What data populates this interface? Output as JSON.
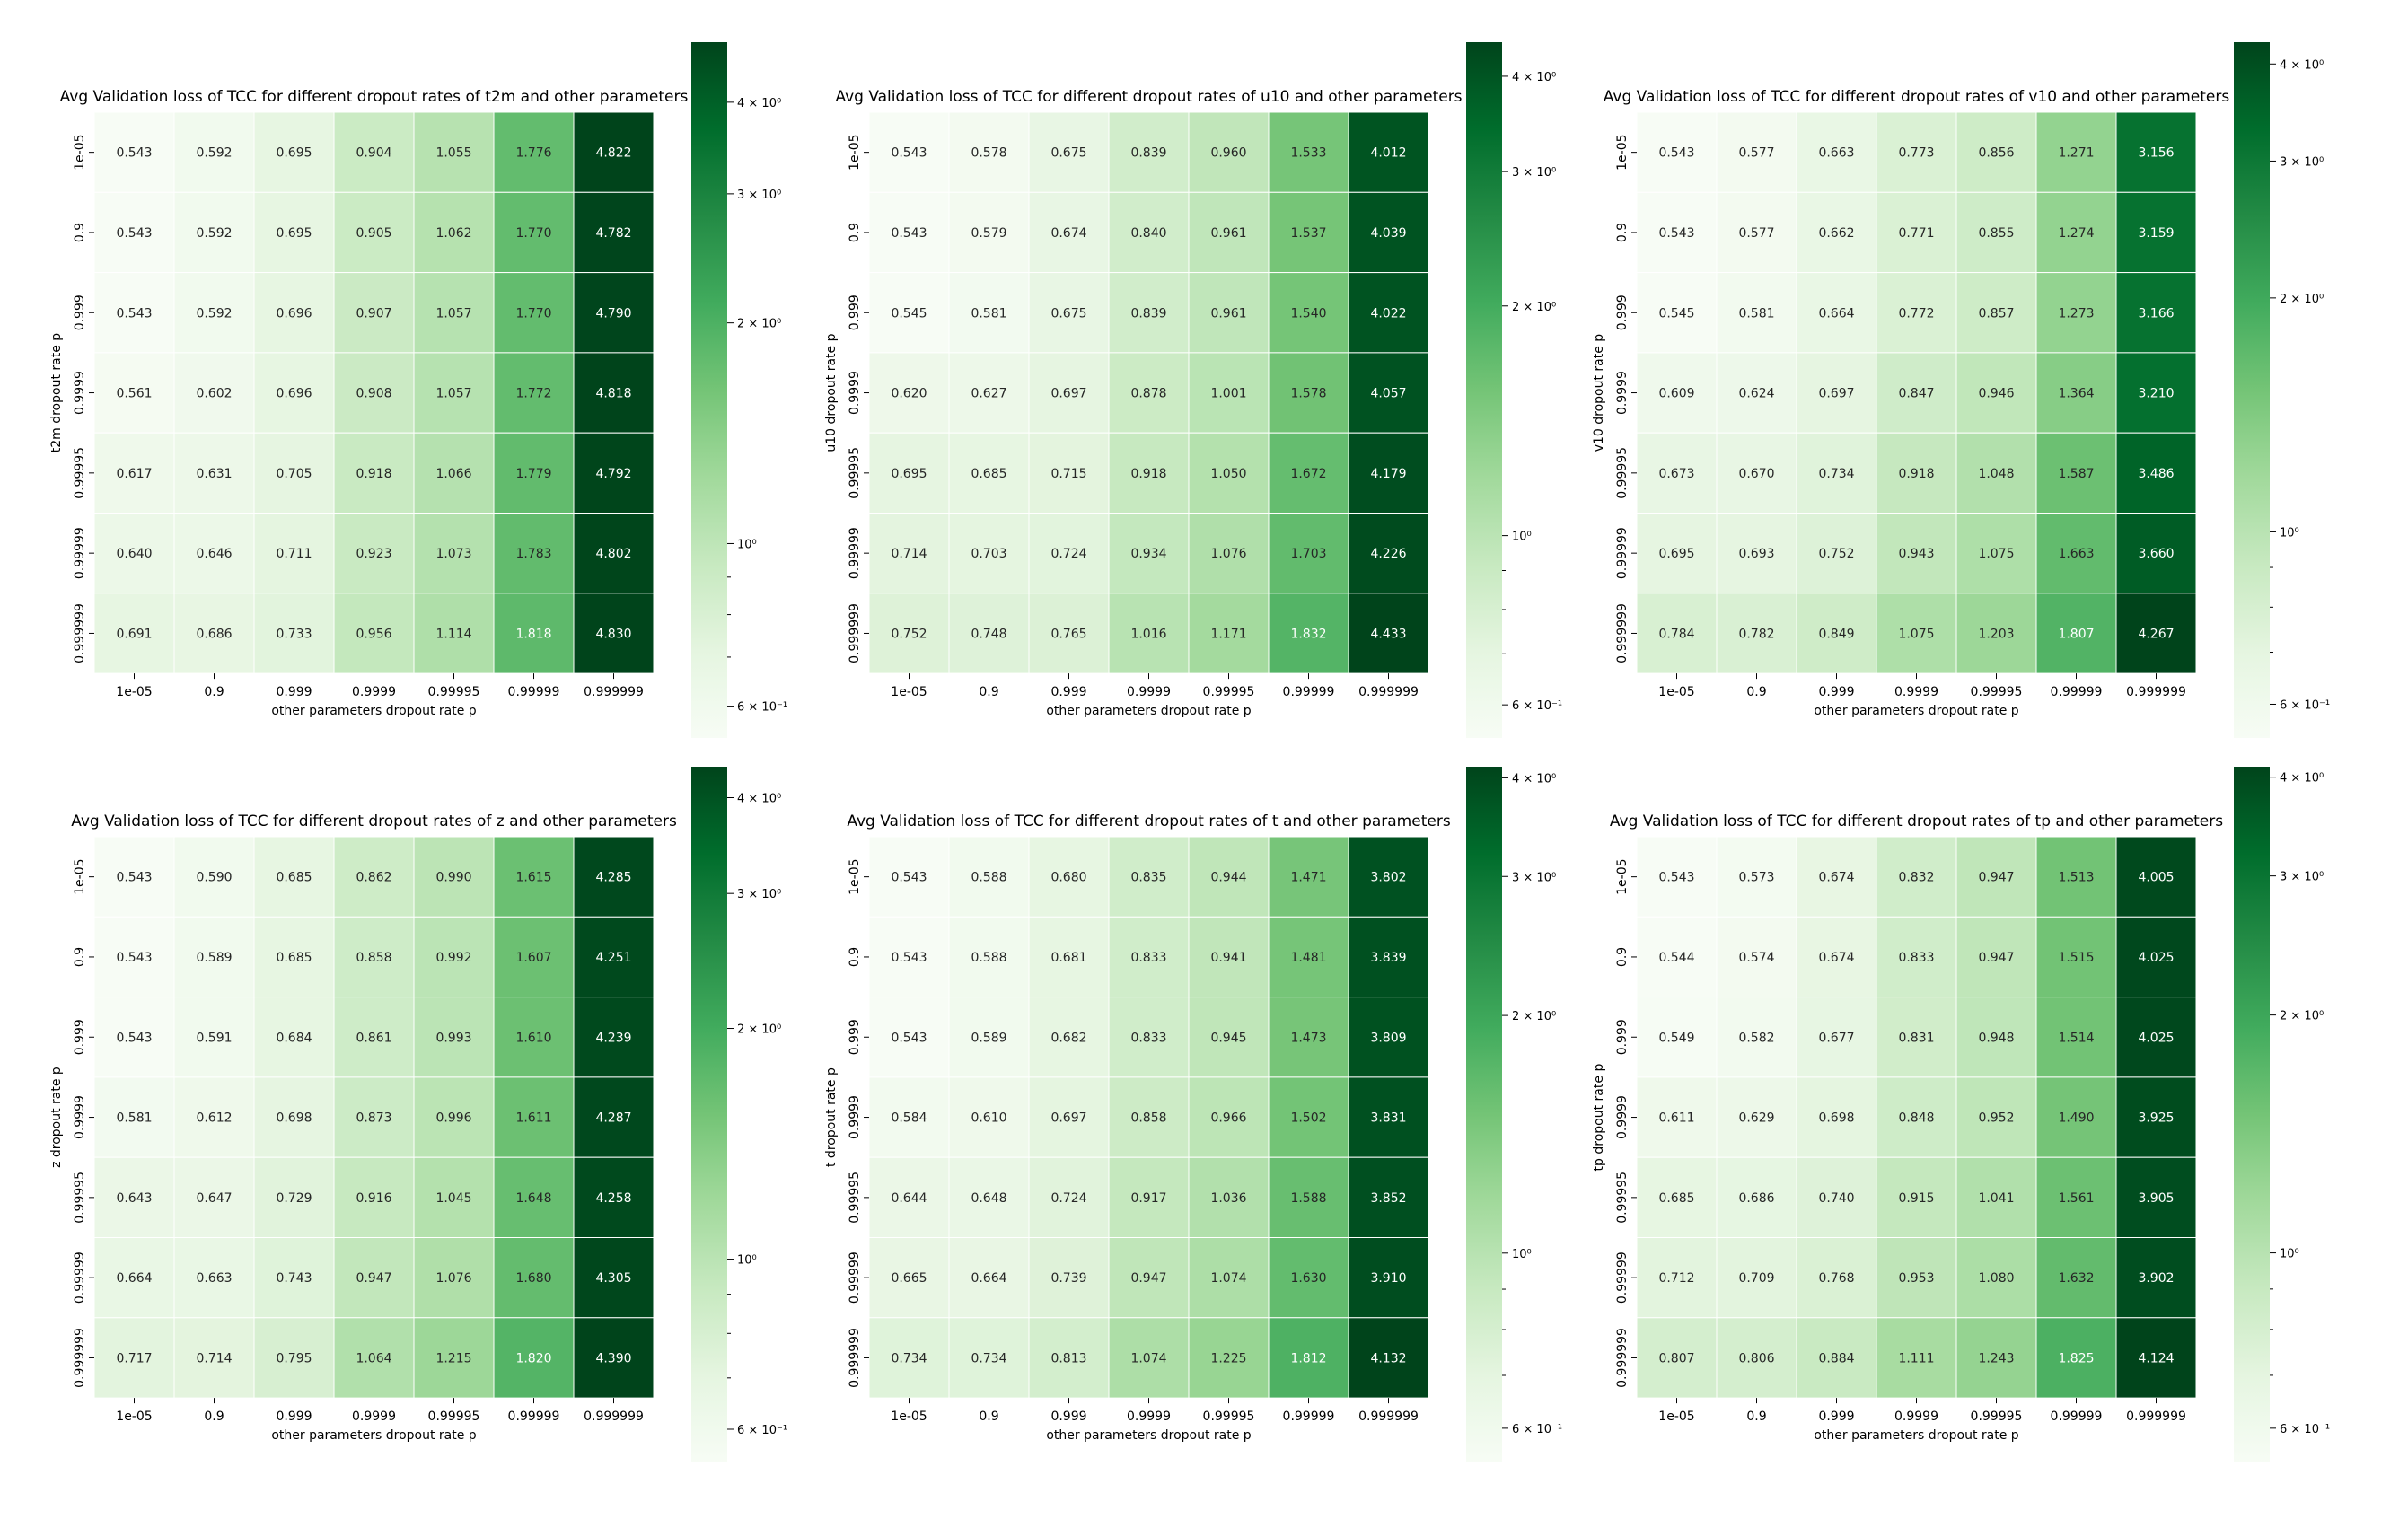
{
  "chart_data": [
    {
      "type": "heatmap",
      "title": "Avg Validation loss of TCC for different dropout rates of t2m and other parameters",
      "xlabel": "other parameters dropout rate p",
      "ylabel": "t2m dropout rate p",
      "x": [
        "1e-05",
        "0.9",
        "0.999",
        "0.9999",
        "0.99995",
        "0.99999",
        "0.999999"
      ],
      "y": [
        "1e-05",
        "0.9",
        "0.999",
        "0.9999",
        "0.99995",
        "0.99999",
        "0.999999"
      ],
      "values": [
        [
          "0.543",
          "0.592",
          "0.695",
          "0.904",
          "1.055",
          "1.776",
          "4.822"
        ],
        [
          "0.543",
          "0.592",
          "0.695",
          "0.905",
          "1.062",
          "1.770",
          "4.782"
        ],
        [
          "0.543",
          "0.592",
          "0.696",
          "0.907",
          "1.057",
          "1.770",
          "4.790"
        ],
        [
          "0.561",
          "0.602",
          "0.696",
          "0.908",
          "1.057",
          "1.772",
          "4.818"
        ],
        [
          "0.617",
          "0.631",
          "0.705",
          "0.918",
          "1.066",
          "1.779",
          "4.792"
        ],
        [
          "0.640",
          "0.646",
          "0.711",
          "0.923",
          "1.073",
          "1.783",
          "4.802"
        ],
        [
          "0.691",
          "0.686",
          "0.733",
          "0.956",
          "1.114",
          "1.818",
          "4.830"
        ]
      ],
      "colorbar": {
        "scale": "log",
        "range": [
          0.543,
          4.83
        ],
        "ticks": [
          "6 × 10⁻¹",
          "10⁰",
          "2 × 10⁰",
          "3 × 10⁰",
          "4 × 10⁰"
        ]
      }
    },
    {
      "type": "heatmap",
      "title": "Avg Validation loss of TCC for different dropout rates of u10 and other parameters",
      "xlabel": "other parameters dropout rate p",
      "ylabel": "u10 dropout rate p",
      "x": [
        "1e-05",
        "0.9",
        "0.999",
        "0.9999",
        "0.99995",
        "0.99999",
        "0.999999"
      ],
      "y": [
        "1e-05",
        "0.9",
        "0.999",
        "0.9999",
        "0.99995",
        "0.99999",
        "0.999999"
      ],
      "values": [
        [
          "0.543",
          "0.578",
          "0.675",
          "0.839",
          "0.960",
          "1.533",
          "4.012"
        ],
        [
          "0.543",
          "0.579",
          "0.674",
          "0.840",
          "0.961",
          "1.537",
          "4.039"
        ],
        [
          "0.545",
          "0.581",
          "0.675",
          "0.839",
          "0.961",
          "1.540",
          "4.022"
        ],
        [
          "0.620",
          "0.627",
          "0.697",
          "0.878",
          "1.001",
          "1.578",
          "4.057"
        ],
        [
          "0.695",
          "0.685",
          "0.715",
          "0.918",
          "1.050",
          "1.672",
          "4.179"
        ],
        [
          "0.714",
          "0.703",
          "0.724",
          "0.934",
          "1.076",
          "1.703",
          "4.226"
        ],
        [
          "0.752",
          "0.748",
          "0.765",
          "1.016",
          "1.171",
          "1.832",
          "4.433"
        ]
      ],
      "colorbar": {
        "scale": "log",
        "range": [
          0.543,
          4.433
        ],
        "ticks": [
          "6 × 10⁻¹",
          "10⁰",
          "2 × 10⁰",
          "3 × 10⁰",
          "4 × 10⁰"
        ]
      }
    },
    {
      "type": "heatmap",
      "title": "Avg Validation loss of TCC for different dropout rates of v10 and other parameters",
      "xlabel": "other parameters dropout rate p",
      "ylabel": "v10 dropout rate p",
      "x": [
        "1e-05",
        "0.9",
        "0.999",
        "0.9999",
        "0.99995",
        "0.99999",
        "0.999999"
      ],
      "y": [
        "1e-05",
        "0.9",
        "0.999",
        "0.9999",
        "0.99995",
        "0.99999",
        "0.999999"
      ],
      "values": [
        [
          "0.543",
          "0.577",
          "0.663",
          "0.773",
          "0.856",
          "1.271",
          "3.156"
        ],
        [
          "0.543",
          "0.577",
          "0.662",
          "0.771",
          "0.855",
          "1.274",
          "3.159"
        ],
        [
          "0.545",
          "0.581",
          "0.664",
          "0.772",
          "0.857",
          "1.273",
          "3.166"
        ],
        [
          "0.609",
          "0.624",
          "0.697",
          "0.847",
          "0.946",
          "1.364",
          "3.210"
        ],
        [
          "0.673",
          "0.670",
          "0.734",
          "0.918",
          "1.048",
          "1.587",
          "3.486"
        ],
        [
          "0.695",
          "0.693",
          "0.752",
          "0.943",
          "1.075",
          "1.663",
          "3.660"
        ],
        [
          "0.784",
          "0.782",
          "0.849",
          "1.075",
          "1.203",
          "1.807",
          "4.267"
        ]
      ],
      "colorbar": {
        "scale": "log",
        "range": [
          0.543,
          4.267
        ],
        "ticks": [
          "6 × 10⁻¹",
          "10⁰",
          "2 × 10⁰",
          "3 × 10⁰",
          "4 × 10⁰"
        ]
      }
    },
    {
      "type": "heatmap",
      "title": "Avg Validation loss of TCC for different dropout rates of z and other parameters",
      "xlabel": "other parameters dropout rate p",
      "ylabel": "z dropout rate p",
      "x": [
        "1e-05",
        "0.9",
        "0.999",
        "0.9999",
        "0.99995",
        "0.99999",
        "0.999999"
      ],
      "y": [
        "1e-05",
        "0.9",
        "0.999",
        "0.9999",
        "0.99995",
        "0.99999",
        "0.999999"
      ],
      "values": [
        [
          "0.543",
          "0.590",
          "0.685",
          "0.862",
          "0.990",
          "1.615",
          "4.285"
        ],
        [
          "0.543",
          "0.589",
          "0.685",
          "0.858",
          "0.992",
          "1.607",
          "4.251"
        ],
        [
          "0.543",
          "0.591",
          "0.684",
          "0.861",
          "0.993",
          "1.610",
          "4.239"
        ],
        [
          "0.581",
          "0.612",
          "0.698",
          "0.873",
          "0.996",
          "1.611",
          "4.287"
        ],
        [
          "0.643",
          "0.647",
          "0.729",
          "0.916",
          "1.045",
          "1.648",
          "4.258"
        ],
        [
          "0.664",
          "0.663",
          "0.743",
          "0.947",
          "1.076",
          "1.680",
          "4.305"
        ],
        [
          "0.717",
          "0.714",
          "0.795",
          "1.064",
          "1.215",
          "1.820",
          "4.390"
        ]
      ],
      "colorbar": {
        "scale": "log",
        "range": [
          0.543,
          4.39
        ],
        "ticks": [
          "6 × 10⁻¹",
          "10⁰",
          "2 × 10⁰",
          "3 × 10⁰",
          "4 × 10⁰"
        ]
      }
    },
    {
      "type": "heatmap",
      "title": "Avg Validation loss of TCC for different dropout rates of t and other parameters",
      "xlabel": "other parameters dropout rate p",
      "ylabel": "t dropout rate p",
      "x": [
        "1e-05",
        "0.9",
        "0.999",
        "0.9999",
        "0.99995",
        "0.99999",
        "0.999999"
      ],
      "y": [
        "1e-05",
        "0.9",
        "0.999",
        "0.9999",
        "0.99995",
        "0.99999",
        "0.999999"
      ],
      "values": [
        [
          "0.543",
          "0.588",
          "0.680",
          "0.835",
          "0.944",
          "1.471",
          "3.802"
        ],
        [
          "0.543",
          "0.588",
          "0.681",
          "0.833",
          "0.941",
          "1.481",
          "3.839"
        ],
        [
          "0.543",
          "0.589",
          "0.682",
          "0.833",
          "0.945",
          "1.473",
          "3.809"
        ],
        [
          "0.584",
          "0.610",
          "0.697",
          "0.858",
          "0.966",
          "1.502",
          "3.831"
        ],
        [
          "0.644",
          "0.648",
          "0.724",
          "0.917",
          "1.036",
          "1.588",
          "3.852"
        ],
        [
          "0.665",
          "0.664",
          "0.739",
          "0.947",
          "1.074",
          "1.630",
          "3.910"
        ],
        [
          "0.734",
          "0.734",
          "0.813",
          "1.074",
          "1.225",
          "1.812",
          "4.132"
        ]
      ],
      "colorbar": {
        "scale": "log",
        "range": [
          0.543,
          4.132
        ],
        "ticks": [
          "6 × 10⁻¹",
          "10⁰",
          "2 × 10⁰",
          "3 × 10⁰",
          "4 × 10⁰"
        ]
      }
    },
    {
      "type": "heatmap",
      "title": "Avg Validation loss of TCC for different dropout rates of tp and other parameters",
      "xlabel": "other parameters dropout rate p",
      "ylabel": "tp dropout rate p",
      "x": [
        "1e-05",
        "0.9",
        "0.999",
        "0.9999",
        "0.99995",
        "0.99999",
        "0.999999"
      ],
      "y": [
        "1e-05",
        "0.9",
        "0.999",
        "0.9999",
        "0.99995",
        "0.99999",
        "0.999999"
      ],
      "values": [
        [
          "0.543",
          "0.573",
          "0.674",
          "0.832",
          "0.947",
          "1.513",
          "4.005"
        ],
        [
          "0.544",
          "0.574",
          "0.674",
          "0.833",
          "0.947",
          "1.515",
          "4.025"
        ],
        [
          "0.549",
          "0.582",
          "0.677",
          "0.831",
          "0.948",
          "1.514",
          "4.025"
        ],
        [
          "0.611",
          "0.629",
          "0.698",
          "0.848",
          "0.952",
          "1.490",
          "3.925"
        ],
        [
          "0.685",
          "0.686",
          "0.740",
          "0.915",
          "1.041",
          "1.561",
          "3.905"
        ],
        [
          "0.712",
          "0.709",
          "0.768",
          "0.953",
          "1.080",
          "1.632",
          "3.902"
        ],
        [
          "0.807",
          "0.806",
          "0.884",
          "1.111",
          "1.243",
          "1.825",
          "4.124"
        ]
      ],
      "colorbar": {
        "scale": "log",
        "range": [
          0.543,
          4.124
        ],
        "ticks": [
          "6 × 10⁻¹",
          "10⁰",
          "2 × 10⁰",
          "3 × 10⁰",
          "4 × 10⁰"
        ]
      }
    }
  ],
  "colors": {
    "cmap": "Greens",
    "low": "#f7fcf5",
    "high": "#00441b"
  }
}
